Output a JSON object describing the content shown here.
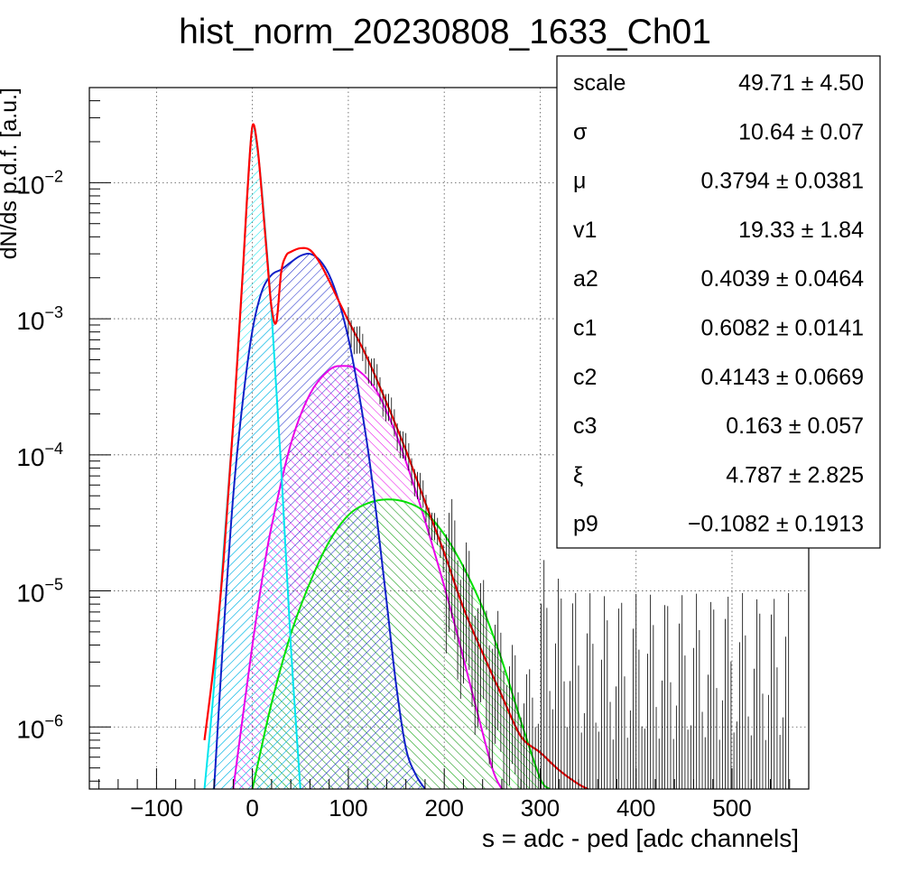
{
  "chart_data": {
    "type": "line",
    "title": "hist_norm_20230808_1633_Ch01",
    "xlabel": "s = adc - ped [adc channels]",
    "ylabel": "dN/ds p.d.f. [a.u.]",
    "xlim": [
      -170,
      580
    ],
    "ylim": [
      3.5e-07,
      0.05
    ],
    "yscale": "log",
    "grid": true,
    "legend_position": "top-right",
    "xticks": [
      {
        "value": -100,
        "label": "−100"
      },
      {
        "value": 0,
        "label": "0"
      },
      {
        "value": 100,
        "label": "100"
      },
      {
        "value": 200,
        "label": "200"
      },
      {
        "value": 300,
        "label": "300"
      },
      {
        "value": 400,
        "label": "400"
      },
      {
        "value": 500,
        "label": "500"
      }
    ],
    "yticks": [
      {
        "value": 1e-06,
        "base": "10",
        "exp": "−6"
      },
      {
        "value": 1e-05,
        "base": "10",
        "exp": "−5"
      },
      {
        "value": 0.0001,
        "base": "10",
        "exp": "−4"
      },
      {
        "value": 0.001,
        "base": "10",
        "exp": "−3"
      },
      {
        "value": 0.01,
        "base": "10",
        "exp": "−2"
      }
    ],
    "series": [
      {
        "color": "#ff0000",
        "fill": false,
        "x": [
          -50,
          -40,
          -30,
          -20,
          -10,
          -5,
          0,
          5,
          10,
          15,
          20,
          25,
          30,
          35,
          40,
          50,
          60,
          70,
          80,
          90,
          100,
          120,
          140,
          160,
          180,
          200,
          220,
          240,
          260,
          280,
          300,
          320,
          340,
          350
        ],
        "y": [
          8e-07,
          3e-06,
          1.7e-05,
          0.00017,
          0.0022,
          0.009,
          0.026,
          0.019,
          0.008,
          0.003,
          0.0012,
          0.00095,
          0.0022,
          0.0029,
          0.0031,
          0.0033,
          0.0032,
          0.0026,
          0.0019,
          0.00135,
          0.00097,
          0.00051,
          0.00024,
          0.000108,
          4.5e-05,
          1.9e-05,
          7.5e-06,
          3.5e-06,
          1.7e-06,
          8.5e-07,
          6.5e-07,
          4.8e-07,
          3.8e-07,
          3.5e-07
        ]
      },
      {
        "color": "#00e5ee",
        "fill": true,
        "x": [
          -50,
          -40,
          -30,
          -20,
          -10,
          -5,
          0,
          5,
          10,
          20,
          30,
          40,
          50
        ],
        "y": [
          3.5e-07,
          2e-06,
          2e-05,
          0.00017,
          0.0022,
          0.009,
          0.026,
          0.018,
          0.0085,
          0.0011,
          8e-05,
          4e-06,
          3.5e-07
        ]
      },
      {
        "color": "#1020c8",
        "fill": true,
        "x": [
          -40,
          -30,
          -20,
          -10,
          0,
          10,
          20,
          30,
          40,
          50,
          60,
          70,
          80,
          90,
          100,
          110,
          120,
          130,
          140,
          150,
          160,
          170,
          180
        ],
        "y": [
          3.5e-07,
          5e-06,
          5e-05,
          0.00025,
          0.00082,
          0.0016,
          0.0021,
          0.0023,
          0.0026,
          0.0029,
          0.003,
          0.0027,
          0.0021,
          0.00135,
          0.00072,
          0.00031,
          0.000115,
          3.3e-05,
          8.2e-06,
          2e-06,
          7e-07,
          4.5e-07,
          3.5e-07
        ]
      },
      {
        "color": "#e800e8",
        "fill": true,
        "x": [
          -20,
          -10,
          0,
          10,
          20,
          40,
          60,
          80,
          95,
          110,
          130,
          150,
          170,
          190,
          210,
          230,
          250,
          260
        ],
        "y": [
          3.5e-07,
          1.2e-06,
          4e-06,
          1.2e-05,
          3e-05,
          0.00012,
          0.00028,
          0.00042,
          0.00045,
          0.00042,
          0.00029,
          0.00014,
          5.5e-05,
          1.9e-05,
          6e-06,
          1.7e-06,
          5e-07,
          3.5e-07
        ]
      },
      {
        "color": "#00e000",
        "fill": true,
        "x": [
          0,
          20,
          40,
          60,
          80,
          100,
          120,
          140,
          160,
          180,
          200,
          220,
          240,
          260,
          280,
          300,
          310
        ],
        "y": [
          3.5e-07,
          1.5e-06,
          4.8e-06,
          1.15e-05,
          2.3e-05,
          3.6e-05,
          4.4e-05,
          4.7e-05,
          4.5e-05,
          3.8e-05,
          2.6e-05,
          1.5e-05,
          7.5e-06,
          3.1e-06,
          1.1e-06,
          4.2e-07,
          3.5e-07
        ]
      }
    ]
  },
  "stats_box": {
    "rows": [
      {
        "name": "scale",
        "value": "49.71",
        "error": "4.50"
      },
      {
        "name": "σ",
        "value": "10.64",
        "error": "0.07"
      },
      {
        "name": "μ",
        "value": "0.3794",
        "error": "0.0381"
      },
      {
        "name": "v1",
        "value": "19.33",
        "error": "1.84"
      },
      {
        "name": "a2",
        "value": "0.4039",
        "error": "0.0464"
      },
      {
        "name": "c1",
        "value": "0.6082",
        "error": "0.0141"
      },
      {
        "name": "c2",
        "value": "0.4143",
        "error": "0.0669"
      },
      {
        "name": "c3",
        "value": "0.163",
        "error": "0.057"
      },
      {
        "name": "ξ",
        "value": "4.787",
        "error": "2.825"
      },
      {
        "name": "p9",
        "value": "−0.1082",
        "error": "0.1913"
      }
    ]
  }
}
